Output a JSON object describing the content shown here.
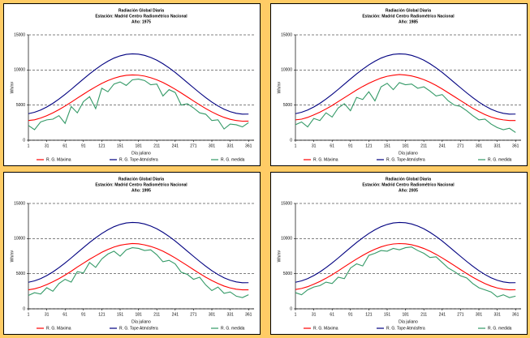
{
  "chart_data": [
    {
      "type": "line",
      "title": "Radiación Global Diaria",
      "subtitle": "Estación: Madrid Centro Radiométrico Nacional",
      "annotation": "Año: 1975",
      "x_label": "Día juliano",
      "y_label": "Wh/m²",
      "x": [
        1,
        11,
        21,
        31,
        41,
        51,
        61,
        71,
        81,
        91,
        101,
        111,
        121,
        131,
        141,
        151,
        161,
        171,
        181,
        191,
        201,
        211,
        221,
        231,
        241,
        251,
        261,
        271,
        281,
        291,
        301,
        311,
        321,
        331,
        341,
        351,
        361
      ],
      "xlim": [
        1,
        370
      ],
      "xticks": [
        1,
        31,
        61,
        91,
        121,
        151,
        181,
        211,
        241,
        271,
        301,
        331,
        361
      ],
      "ylim": [
        0,
        15000
      ],
      "yticks": [
        0,
        5000,
        10000,
        15000
      ],
      "grid": true,
      "series": [
        {
          "name": "R. G. Máxima",
          "color": "#ff0000",
          "values": [
            2800,
            2910,
            3160,
            3490,
            3890,
            4360,
            4870,
            5420,
            5990,
            6550,
            7100,
            7610,
            8090,
            8490,
            8830,
            9080,
            9240,
            9300,
            9260,
            9130,
            8900,
            8600,
            8220,
            7760,
            7260,
            6720,
            6160,
            5590,
            5040,
            4510,
            4030,
            3600,
            3250,
            2980,
            2800,
            2710,
            2720
          ]
        },
        {
          "name": "R. G. Tope Atmósfera",
          "color": "#000080",
          "values": [
            3780,
            3980,
            4300,
            4730,
            5250,
            5860,
            6530,
            7240,
            7980,
            8720,
            9440,
            10100,
            10720,
            11250,
            11690,
            12010,
            12220,
            12300,
            12250,
            12080,
            11780,
            11390,
            10890,
            10300,
            9650,
            8940,
            8200,
            7470,
            6750,
            6060,
            5430,
            4880,
            4410,
            4070,
            3830,
            3710,
            3720
          ]
        },
        {
          "name": "R. G. medida",
          "color": "#339966",
          "values": [
            2100,
            1500,
            2600,
            2900,
            3000,
            3500,
            2400,
            4800,
            3900,
            5500,
            6200,
            4500,
            7400,
            6900,
            8000,
            8300,
            7800,
            8600,
            8700,
            8500,
            7900,
            8000,
            6300,
            7200,
            6800,
            5000,
            5200,
            4600,
            3900,
            3700,
            2800,
            2900,
            1600,
            2300,
            2200,
            1900,
            2500
          ]
        }
      ]
    },
    {
      "type": "line",
      "title": "Radiación Global Diaria",
      "subtitle": "Estación: Madrid Centro Radiométrico Nacional",
      "annotation": "Año: 1985",
      "x_label": "Día juliano",
      "y_label": "Wh/m²",
      "x": [
        1,
        11,
        21,
        31,
        41,
        51,
        61,
        71,
        81,
        91,
        101,
        111,
        121,
        131,
        141,
        151,
        161,
        171,
        181,
        191,
        201,
        211,
        221,
        231,
        241,
        251,
        261,
        271,
        281,
        291,
        301,
        311,
        321,
        331,
        341,
        351,
        361
      ],
      "xlim": [
        1,
        370
      ],
      "xticks": [
        1,
        31,
        61,
        91,
        121,
        151,
        181,
        211,
        241,
        271,
        301,
        331,
        361
      ],
      "ylim": [
        0,
        15000
      ],
      "yticks": [
        0,
        5000,
        10000,
        15000
      ],
      "grid": true,
      "series": [
        {
          "name": "R. G. Máxima",
          "color": "#ff0000",
          "values": [
            2900,
            3000,
            3250,
            3600,
            4000,
            4450,
            4950,
            5500,
            6050,
            6600,
            7150,
            7650,
            8100,
            8500,
            8850,
            9100,
            9250,
            9350,
            9280,
            9150,
            8920,
            8620,
            8250,
            7800,
            7300,
            6750,
            6200,
            5650,
            5100,
            4550,
            4080,
            3650,
            3300,
            3050,
            2900,
            2800,
            2800
          ]
        },
        {
          "name": "R. G. Tope Atmósfera",
          "color": "#000080",
          "values": [
            3780,
            3980,
            4300,
            4730,
            5250,
            5860,
            6530,
            7240,
            7980,
            8720,
            9440,
            10100,
            10720,
            11250,
            11690,
            12010,
            12220,
            12300,
            12250,
            12080,
            11780,
            11390,
            10890,
            10300,
            9650,
            8940,
            8200,
            7470,
            6750,
            6060,
            5430,
            4880,
            4410,
            4070,
            3830,
            3710,
            3720
          ]
        },
        {
          "name": "R. G. medida",
          "color": "#339966",
          "values": [
            2200,
            2600,
            1900,
            3100,
            2800,
            3900,
            3300,
            4600,
            5200,
            4200,
            6100,
            5800,
            6900,
            5600,
            7600,
            8100,
            7200,
            8200,
            7900,
            8000,
            7400,
            7600,
            7000,
            6300,
            6500,
            5600,
            5000,
            4800,
            4200,
            3500,
            2900,
            3000,
            2300,
            1800,
            1500,
            1700,
            1100
          ]
        }
      ]
    },
    {
      "type": "line",
      "title": "Radiación Global Diaria",
      "subtitle": "Estación: Madrid Centro Radiométrico Nacional",
      "annotation": "Año: 1995",
      "x_label": "Día juliano",
      "y_label": "Wh/m²",
      "x": [
        1,
        11,
        21,
        31,
        41,
        51,
        61,
        71,
        81,
        91,
        101,
        111,
        121,
        131,
        141,
        151,
        161,
        171,
        181,
        191,
        201,
        211,
        221,
        231,
        241,
        251,
        261,
        271,
        281,
        291,
        301,
        311,
        321,
        331,
        341,
        351,
        361
      ],
      "xlim": [
        1,
        370
      ],
      "xticks": [
        1,
        31,
        61,
        91,
        121,
        151,
        181,
        211,
        241,
        271,
        301,
        331,
        361
      ],
      "ylim": [
        0,
        15000
      ],
      "yticks": [
        0,
        5000,
        10000,
        15000
      ],
      "grid": true,
      "series": [
        {
          "name": "R. G. Máxima",
          "color": "#ff0000",
          "values": [
            2700,
            2850,
            3100,
            3450,
            3850,
            4300,
            4800,
            5350,
            5950,
            6500,
            7050,
            7550,
            8050,
            8450,
            8800,
            9050,
            9200,
            9300,
            9250,
            9100,
            8880,
            8580,
            8200,
            7740,
            7250,
            6700,
            6150,
            5580,
            5030,
            4500,
            4020,
            3600,
            3240,
            2970,
            2790,
            2700,
            2700
          ]
        },
        {
          "name": "R. G. Tope Atmósfera",
          "color": "#000080",
          "values": [
            3780,
            3980,
            4300,
            4730,
            5250,
            5860,
            6530,
            7240,
            7980,
            8720,
            9440,
            10100,
            10720,
            11250,
            11690,
            12010,
            12220,
            12300,
            12250,
            12080,
            11780,
            11390,
            10890,
            10300,
            9650,
            8940,
            8200,
            7470,
            6750,
            6060,
            5430,
            4880,
            4410,
            4070,
            3830,
            3710,
            3720
          ]
        },
        {
          "name": "R. G. medida",
          "color": "#339966",
          "values": [
            1900,
            2300,
            2100,
            3000,
            2500,
            3600,
            4200,
            3800,
            5300,
            5100,
            6600,
            5900,
            7100,
            7800,
            8200,
            7500,
            8400,
            8700,
            8600,
            8300,
            8400,
            7700,
            6700,
            6900,
            6400,
            5200,
            4900,
            4200,
            4500,
            3400,
            2600,
            3100,
            2200,
            2400,
            1800,
            1600,
            2000
          ]
        }
      ]
    },
    {
      "type": "line",
      "title": "Radiación Global Diaria",
      "subtitle": "Estación: Madrid Centro Radiométrico Nacional",
      "annotation": "Año: 2005",
      "x_label": "Día juliano",
      "y_label": "Wh/m²",
      "x": [
        1,
        11,
        21,
        31,
        41,
        51,
        61,
        71,
        81,
        91,
        101,
        111,
        121,
        131,
        141,
        151,
        161,
        171,
        181,
        191,
        201,
        211,
        221,
        231,
        241,
        251,
        261,
        271,
        281,
        291,
        301,
        311,
        321,
        331,
        341,
        351,
        361
      ],
      "xlim": [
        1,
        370
      ],
      "xticks": [
        1,
        31,
        61,
        91,
        121,
        151,
        181,
        211,
        241,
        271,
        301,
        331,
        361
      ],
      "ylim": [
        0,
        15000
      ],
      "yticks": [
        0,
        5000,
        10000,
        15000
      ],
      "grid": true,
      "series": [
        {
          "name": "R. G. Máxima",
          "color": "#ff0000",
          "values": [
            2750,
            2900,
            3150,
            3500,
            3900,
            4350,
            4850,
            5400,
            5980,
            6540,
            7090,
            7600,
            8080,
            8480,
            8820,
            9070,
            9230,
            9290,
            9250,
            9120,
            8890,
            8590,
            8210,
            7750,
            7250,
            6710,
            6150,
            5580,
            5030,
            4500,
            4020,
            3590,
            3240,
            2970,
            2790,
            2700,
            2710
          ]
        },
        {
          "name": "R. G. Tope Atmósfera",
          "color": "#000080",
          "values": [
            3780,
            3980,
            4300,
            4730,
            5250,
            5860,
            6530,
            7240,
            7980,
            8720,
            9440,
            10100,
            10720,
            11250,
            11690,
            12010,
            12220,
            12300,
            12250,
            12080,
            11780,
            11390,
            10890,
            10300,
            9650,
            8940,
            8200,
            7470,
            6750,
            6060,
            5430,
            4880,
            4410,
            4070,
            3830,
            3710,
            3720
          ]
        },
        {
          "name": "R. G. medida",
          "color": "#339966",
          "values": [
            2300,
            2000,
            2700,
            3100,
            3300,
            3800,
            3600,
            4500,
            4300,
            5800,
            6400,
            6100,
            7600,
            7900,
            8300,
            8200,
            8600,
            8400,
            8700,
            8800,
            8300,
            7900,
            7300,
            7400,
            6600,
            5800,
            5300,
            4700,
            4400,
            3600,
            3000,
            2700,
            2400,
            1700,
            2000,
            1600,
            1800
          ]
        }
      ]
    }
  ]
}
